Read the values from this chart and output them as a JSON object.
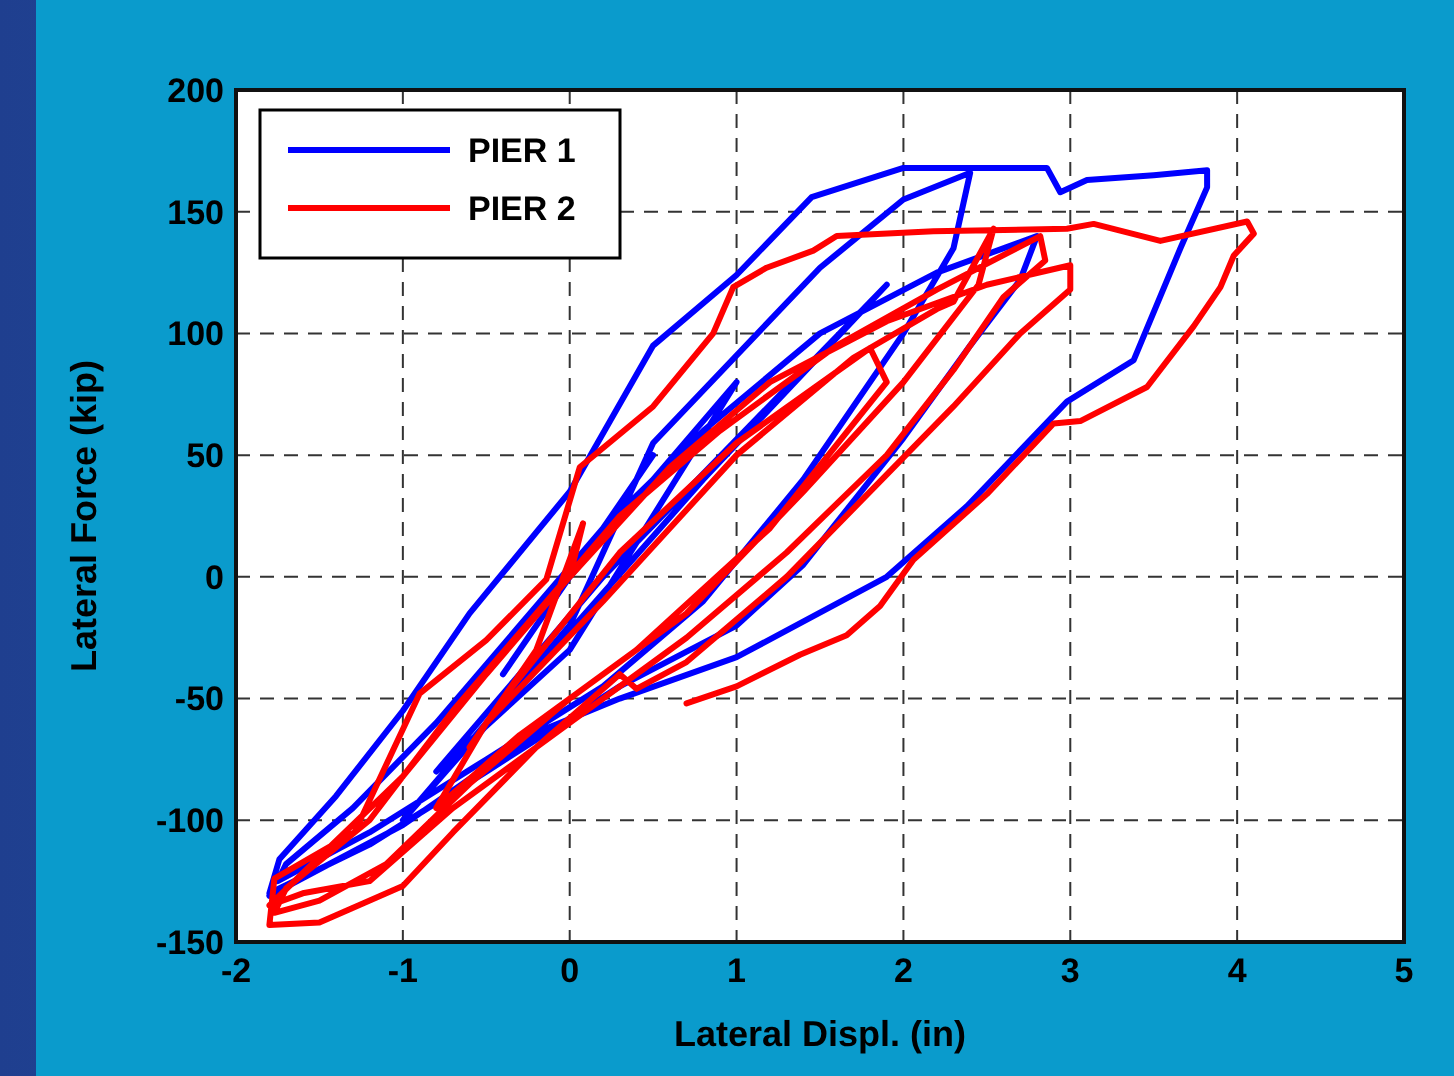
{
  "chart_data": {
    "type": "line",
    "xlabel": "Lateral Displ. (in)",
    "ylabel": "Lateral Force (kip)",
    "xlim": [
      -2,
      5
    ],
    "xticks": [
      -2,
      -1,
      0,
      1,
      2,
      3,
      4,
      5
    ],
    "ylim": [
      -150,
      200
    ],
    "yticks": [
      -150,
      -100,
      -50,
      0,
      50,
      100,
      150,
      200
    ],
    "grid": true,
    "legend": "top left",
    "line_style": "solid",
    "marker": "none",
    "series": [
      {
        "name": "PIER 1",
        "color": "#0000ff",
        "x": [
          0,
          0.5,
          -0.4,
          0,
          1.0,
          0,
          -0.8,
          0.2,
          1.9,
          0.8,
          -1.0,
          0,
          0.5,
          1.5,
          2.0,
          2.4,
          2.3,
          2.0,
          1.4,
          0.8,
          0.2,
          -0.5,
          -1.2,
          -1.75,
          -1.7,
          -1.3,
          -0.8,
          -0.3,
          0.2,
          0.8,
          1.5,
          2.2,
          2.8,
          2.7,
          2.4,
          2.0,
          1.4,
          1.0,
          0.3,
          -0.5,
          -1.2,
          -1.8,
          -1.74,
          -1.4,
          -1,
          -0.6,
          0,
          0.5,
          1,
          1.45,
          2,
          2.86,
          2.94,
          3.1,
          3.5,
          3.82,
          3.82,
          3.66,
          3.38,
          2.98,
          2.38,
          1.9,
          1.0,
          0.3,
          -0.2,
          -1,
          -1.8
        ],
        "values": [
          0,
          50,
          -40,
          0,
          80,
          -30,
          -80,
          0,
          120,
          40,
          -100,
          -20,
          55,
          127,
          155,
          166,
          135,
          100,
          40,
          -10,
          -45,
          -75,
          -105,
          -125,
          -118,
          -95,
          -60,
          -20,
          20,
          60,
          100,
          125,
          140,
          122,
          95,
          57,
          5,
          -20,
          -45,
          -80,
          -110,
          -130,
          -116,
          -90,
          -55,
          -15,
          35,
          95,
          124,
          156,
          168,
          168,
          158,
          163,
          165,
          167,
          160,
          135,
          89,
          72,
          29,
          0,
          -33,
          -50,
          -64,
          -102,
          -131
        ]
      },
      {
        "name": "PIER 2",
        "color": "#ff0000",
        "x": [
          0,
          0.08,
          -0.2,
          -0.6,
          -0.4,
          0.3,
          1.0,
          1.8,
          1.9,
          1.2,
          0.4,
          -0.3,
          -0.8,
          -0.5,
          0.2,
          1.0,
          1.7,
          2.2,
          2.3,
          2.54,
          2.45,
          2.0,
          1.4,
          0.7,
          0,
          -0.6,
          -1.1,
          -1.5,
          -1.77,
          -1.7,
          -1.2,
          -0.7,
          -0.2,
          0.3,
          0.9,
          1.6,
          2.2,
          2.82,
          2.85,
          2.6,
          2.3,
          1.9,
          1.3,
          0.7,
          0,
          -0.7,
          -1.2,
          -1.6,
          -1.8,
          -1.5,
          -1.0,
          -0.5,
          0,
          0.6,
          1.2,
          1.9,
          2.5,
          3.0,
          3.0,
          2.7,
          2.3,
          1.8,
          1.3,
          0.7,
          0.4,
          0.3,
          -0.2,
          -0.7,
          -1.0,
          -1.5,
          -1.8,
          -1.77,
          -1.29,
          -0.9,
          -0.5,
          -0.14,
          0.06,
          0.5,
          0.86,
          0.98,
          1.18,
          1.46,
          1.6,
          2.18,
          2.98,
          3.14,
          3.54,
          4.06,
          4.1,
          3.98,
          3.9,
          3.74,
          3.46,
          3.06,
          2.9,
          2.5,
          2.06,
          1.86,
          1.66,
          1.38,
          1.0,
          0.7
        ],
        "values": [
          0,
          22,
          -30,
          -70,
          -50,
          10,
          55,
          94,
          80,
          20,
          -30,
          -65,
          -95,
          -60,
          -10,
          50,
          90,
          110,
          113,
          143,
          120,
          80,
          35,
          -15,
          -50,
          -85,
          -118,
          -133,
          -138,
          -128,
          -100,
          -55,
          -15,
          25,
          60,
          95,
          118,
          140,
          130,
          115,
          85,
          50,
          10,
          -25,
          -60,
          -95,
          -125,
          -130,
          -135,
          -115,
          -82,
          -40,
          0,
          45,
          80,
          105,
          120,
          128,
          118,
          100,
          70,
          35,
          0,
          -35,
          -46,
          -40,
          -70,
          -105,
          -127,
          -142,
          -143,
          -124,
          -105,
          -48,
          -26,
          -1,
          45,
          70,
          100,
          119,
          127,
          134,
          140,
          142,
          143,
          145,
          138,
          146,
          141,
          132,
          119,
          103,
          78,
          64,
          63,
          34,
          7,
          -12,
          -24,
          -32,
          -45,
          -52
        ]
      }
    ]
  }
}
